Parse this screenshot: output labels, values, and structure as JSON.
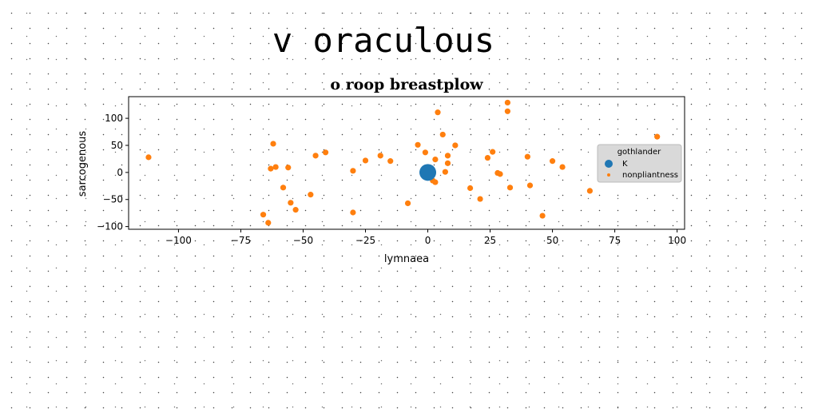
{
  "figure_title": "v oraculous",
  "chart_data": {
    "type": "scatter",
    "title": "o roop breastplow",
    "xlabel": "lymnaea",
    "ylabel": "sarcogenous",
    "xlim": [
      -120,
      103
    ],
    "ylim": [
      -105,
      140
    ],
    "xticks": [
      -100,
      -75,
      -50,
      -25,
      0,
      25,
      50,
      75,
      100
    ],
    "yticks": [
      -100,
      -50,
      0,
      50,
      100
    ],
    "grid": false,
    "legend": {
      "title": "gothlander",
      "placement": "right"
    },
    "series": [
      {
        "name": "K",
        "color": "#1f77b4",
        "marker_size": "large",
        "points": [
          [
            0,
            0
          ]
        ]
      },
      {
        "name": "nonpliantness",
        "color": "#ff7f0e",
        "marker_size": "small",
        "points": [
          [
            -112,
            28
          ],
          [
            -66,
            -78
          ],
          [
            -64,
            -93
          ],
          [
            -63,
            7
          ],
          [
            -62,
            53
          ],
          [
            -61,
            10
          ],
          [
            -58,
            -28
          ],
          [
            -56,
            9
          ],
          [
            -55,
            -56
          ],
          [
            -53,
            -69
          ],
          [
            -47,
            -41
          ],
          [
            -45,
            31
          ],
          [
            -41,
            37
          ],
          [
            -30,
            3
          ],
          [
            -30,
            -74
          ],
          [
            -25,
            22
          ],
          [
            -19,
            31
          ],
          [
            -15,
            21
          ],
          [
            -8,
            -57
          ],
          [
            -4,
            51
          ],
          [
            -1,
            37
          ],
          [
            2,
            -15
          ],
          [
            3,
            -18
          ],
          [
            3,
            24
          ],
          [
            4,
            111
          ],
          [
            6,
            70
          ],
          [
            7,
            1
          ],
          [
            8,
            31
          ],
          [
            8,
            17
          ],
          [
            11,
            50
          ],
          [
            17,
            -29
          ],
          [
            21,
            -49
          ],
          [
            24,
            27
          ],
          [
            26,
            38
          ],
          [
            28,
            -1
          ],
          [
            29,
            -3
          ],
          [
            32,
            129
          ],
          [
            32,
            113
          ],
          [
            33,
            -28
          ],
          [
            40,
            29
          ],
          [
            41,
            -24
          ],
          [
            46,
            -80
          ],
          [
            50,
            21
          ],
          [
            54,
            10
          ],
          [
            65,
            -34
          ],
          [
            92,
            66
          ]
        ]
      }
    ]
  }
}
